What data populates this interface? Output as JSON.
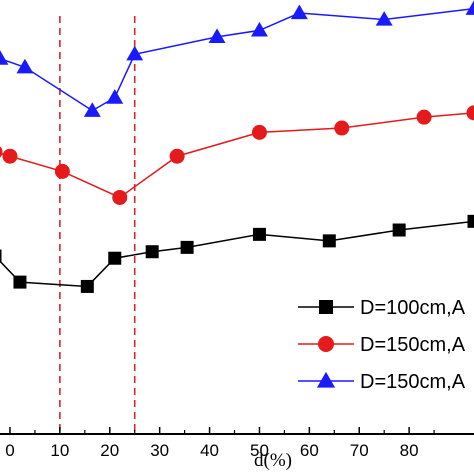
{
  "chart_data": {
    "type": "line",
    "xlabel": "d(%)",
    "ylabel": "",
    "title": "",
    "xlim": [
      -2,
      93
    ],
    "ylim": [
      0,
      100
    ],
    "x_ticks": [
      0,
      10,
      20,
      30,
      40,
      50,
      60,
      70,
      80
    ],
    "x_tick_labels": [
      "0",
      "10",
      "20",
      "30",
      "40",
      "50",
      "60",
      "70",
      "80"
    ],
    "grid": false,
    "legend_position": "bottom-right",
    "reference_lines": [
      {
        "x": 10,
        "color": "#d62728",
        "style": "dashed"
      },
      {
        "x": 25,
        "color": "#d62728",
        "style": "dashed"
      }
    ],
    "series": [
      {
        "name": "D=100cm,A",
        "color": "#000000",
        "marker": "square",
        "x": [
          -3,
          2,
          15.5,
          21,
          28.5,
          35.5,
          50,
          64,
          78,
          93
        ],
        "y": [
          41,
          35,
          34,
          40.5,
          42,
          43,
          46,
          44.5,
          47,
          49
        ]
      },
      {
        "name": "D=150cm,A",
        "color": "#e41a1c",
        "marker": "circle",
        "x": [
          -3,
          0,
          10.5,
          22,
          33.5,
          50,
          66.5,
          83,
          93
        ],
        "y": [
          65,
          64,
          60.5,
          54.5,
          64,
          69.5,
          70.5,
          73,
          74
        ]
      },
      {
        "name": "D=150cm,A",
        "color": "#1a1aff",
        "marker": "triangle",
        "x": [
          -3,
          -2,
          3,
          16.5,
          21,
          25,
          41.5,
          50,
          58,
          75,
          93
        ],
        "y": [
          87,
          86.5,
          84.5,
          74.5,
          77.5,
          87.5,
          91.5,
          93,
          97,
          95.5,
          98
        ]
      }
    ]
  }
}
